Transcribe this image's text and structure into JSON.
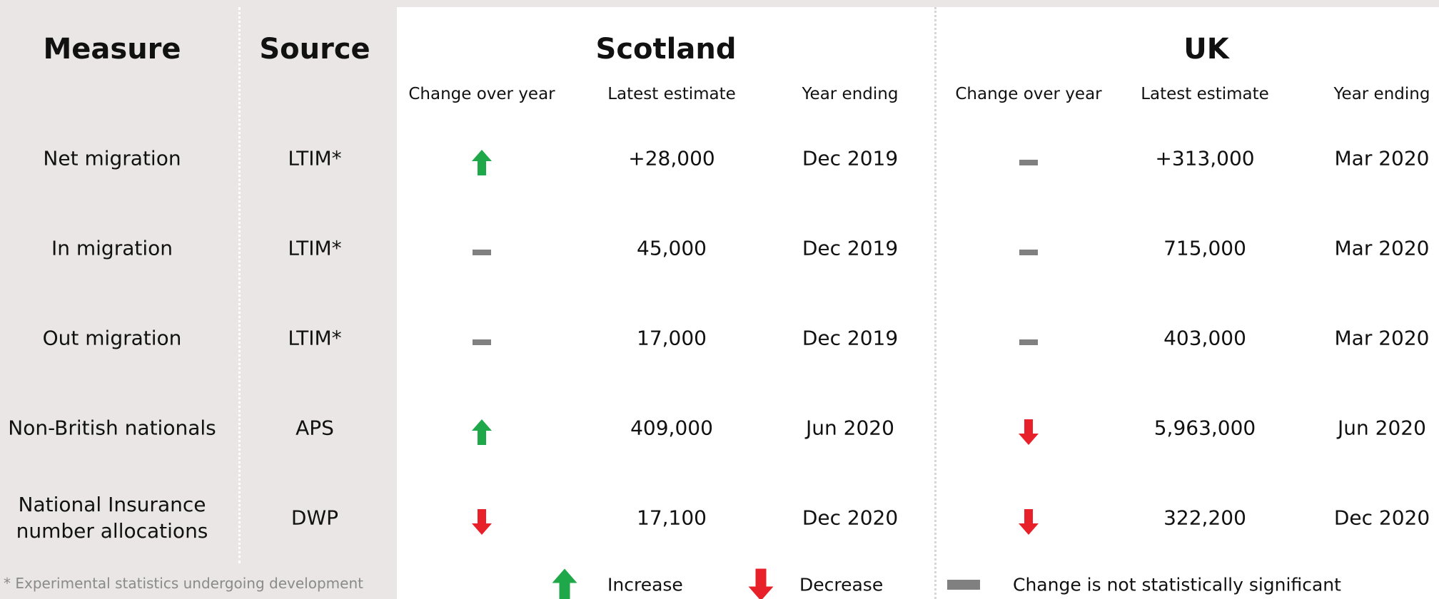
{
  "headers": {
    "measure": "Measure",
    "source": "Source"
  },
  "groups": [
    {
      "name": "Scotland",
      "columns": [
        "Change over year",
        "Latest estimate",
        "Year ending"
      ]
    },
    {
      "name": "UK",
      "columns": [
        "Change over year",
        "Latest estimate",
        "Year ending"
      ]
    }
  ],
  "rows": [
    {
      "measure": "Net migration",
      "source": "LTIM*",
      "values": [
        {
          "change": "increase",
          "estimate": "+28,000",
          "year_ending": "Dec 2019"
        },
        {
          "change": "none",
          "estimate": "+313,000",
          "year_ending": "Mar 2020"
        }
      ]
    },
    {
      "measure": "In migration",
      "source": "LTIM*",
      "values": [
        {
          "change": "none",
          "estimate": "45,000",
          "year_ending": "Dec 2019"
        },
        {
          "change": "none",
          "estimate": "715,000",
          "year_ending": "Mar 2020"
        }
      ]
    },
    {
      "measure": "Out migration",
      "source": "LTIM*",
      "values": [
        {
          "change": "none",
          "estimate": "17,000",
          "year_ending": "Dec 2019"
        },
        {
          "change": "none",
          "estimate": "403,000",
          "year_ending": "Mar 2020"
        }
      ]
    },
    {
      "measure": "Non-British nationals",
      "source": "APS",
      "values": [
        {
          "change": "increase",
          "estimate": "409,000",
          "year_ending": "Jun 2020"
        },
        {
          "change": "decrease",
          "estimate": "5,963,000",
          "year_ending": "Jun 2020"
        }
      ]
    },
    {
      "measure": "National Insurance number allocations",
      "source": "DWP",
      "values": [
        {
          "change": "decrease",
          "estimate": "17,100",
          "year_ending": "Dec 2020"
        },
        {
          "change": "decrease",
          "estimate": "322,200",
          "year_ending": "Dec 2020"
        }
      ]
    }
  ],
  "legend": [
    {
      "change": "increase",
      "label": "Increase"
    },
    {
      "change": "decrease",
      "label": "Decrease"
    },
    {
      "change": "none",
      "label": "Change is not statistically significant"
    }
  ],
  "footnote": "* Experimental statistics undergoing development"
}
